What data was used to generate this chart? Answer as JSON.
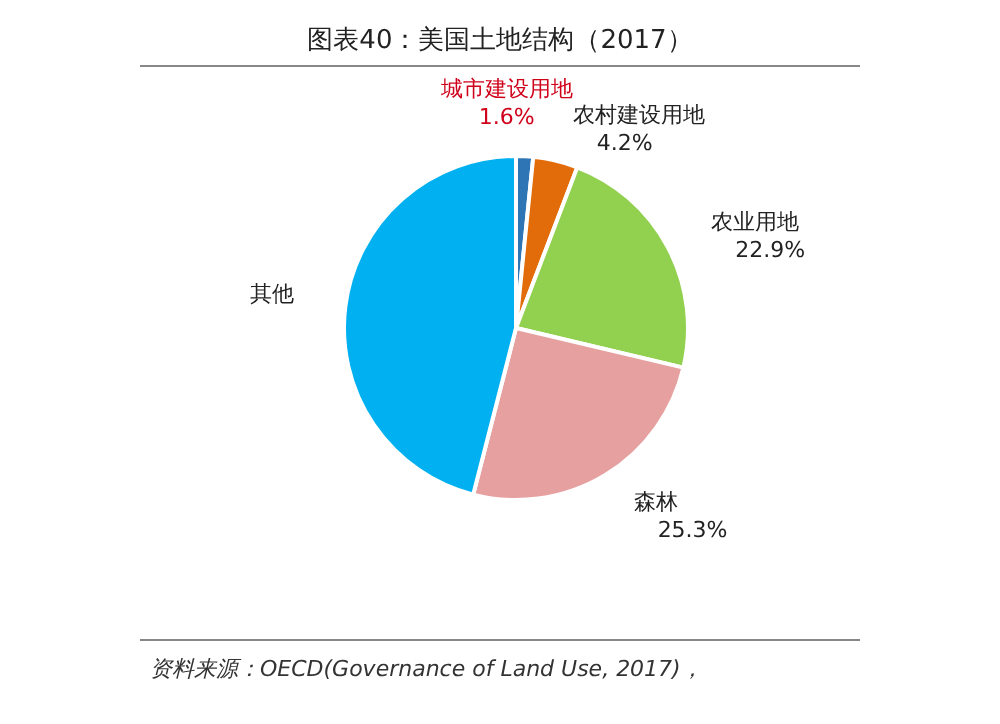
{
  "chart_data": {
    "type": "pie",
    "title": "图表40：美国土地结构（2017）",
    "categories": [
      "城市建设用地",
      "农村建设用地",
      "农业用地",
      "森林",
      "其他"
    ],
    "values": [
      1.6,
      4.2,
      22.9,
      25.3,
      46.0
    ],
    "value_labels": [
      "1.6%",
      "4.2%",
      "22.9%",
      "25.3%",
      null
    ],
    "colors": [
      "#2e75b6",
      "#e36c0a",
      "#92d050",
      "#e6a0a0",
      "#00b0f0"
    ],
    "annotations": [
      "资料来源：OECD(Governance of Land Use, 2017)，"
    ]
  }
}
